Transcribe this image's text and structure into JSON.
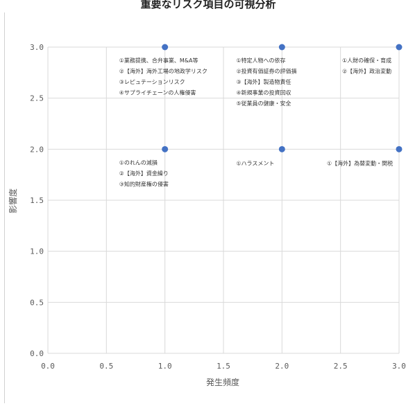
{
  "chart_data": {
    "type": "scatter",
    "title": "重要なリスク項目の可視分析",
    "xlabel": "発生頻度",
    "ylabel": "影響度",
    "xlim": [
      0,
      3
    ],
    "ylim": [
      0,
      3
    ],
    "xticks": [
      "0.0",
      "0.5",
      "1.0",
      "1.5",
      "2.0",
      "2.5",
      "3.0"
    ],
    "yticks": [
      "0.0",
      "0.5",
      "1.0",
      "1.5",
      "2.0",
      "2.5",
      "3.0"
    ],
    "grid": true,
    "marker_color": "#4472C4",
    "points": [
      {
        "x": 1,
        "y": 3
      },
      {
        "x": 2,
        "y": 3
      },
      {
        "x": 3,
        "y": 3
      },
      {
        "x": 1,
        "y": 2
      },
      {
        "x": 2,
        "y": 2
      },
      {
        "x": 3,
        "y": 2
      }
    ],
    "annotations": [
      {
        "x": 1,
        "y": 3,
        "lines": [
          "①業務提携、合弁事業、M&A等",
          "②【海外】海外工場の地政学リスク",
          "③レピュテーションリスク",
          "④サプライチェーンの人権侵害"
        ]
      },
      {
        "x": 2,
        "y": 3,
        "lines": [
          "①特定人物への依存",
          "②投資有価証券の評価損",
          "③【海外】製造物責任",
          "④新規事業の投資回収",
          "⑤従業員の健康・安全"
        ]
      },
      {
        "x": 3,
        "y": 3,
        "lines": [
          "①人財の確保・育成",
          "②【海外】政治変動"
        ]
      },
      {
        "x": 1,
        "y": 2,
        "lines": [
          "①のれんの減損",
          "②【海外】資金繰り",
          "③知的財産権の侵害"
        ]
      },
      {
        "x": 2,
        "y": 2,
        "lines": [
          "①ハラスメント"
        ]
      },
      {
        "x": 3,
        "y": 2,
        "lines": [
          "①【海外】為替変動・関税"
        ]
      }
    ]
  }
}
